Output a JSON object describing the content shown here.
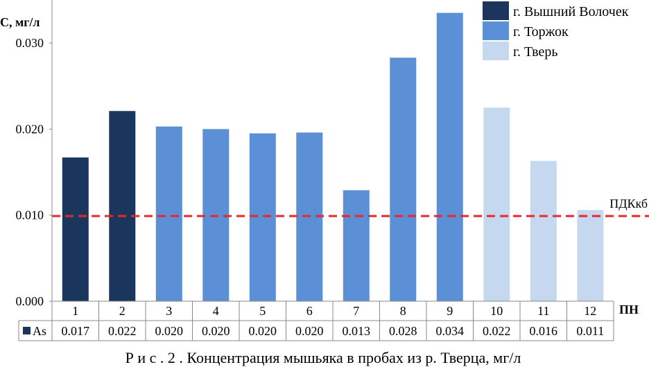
{
  "chart_data": {
    "type": "bar",
    "ylabel": "С, мг/л",
    "xlabel": "ПН",
    "ylim": [
      0,
      0.035
    ],
    "yticks": [
      "0.000",
      "0.010",
      "0.020",
      "0.030"
    ],
    "ytick_values": [
      0,
      0.01,
      0.02,
      0.03
    ],
    "categories": [
      "1",
      "2",
      "3",
      "4",
      "5",
      "6",
      "7",
      "8",
      "9",
      "10",
      "11",
      "12"
    ],
    "values": [
      0.0167,
      0.0221,
      0.0203,
      0.02,
      0.0195,
      0.0196,
      0.0129,
      0.0283,
      0.0335,
      0.0225,
      0.0163,
      0.0106
    ],
    "groups": [
      "г. Вышний Волочек",
      "г. Вышний Волочек",
      "г. Торжок",
      "г. Торжок",
      "г. Торжок",
      "г. Торжок",
      "г. Торжок",
      "г. Торжок",
      "г. Торжок",
      "г. Тверь",
      "г. Тверь",
      "г. Тверь"
    ],
    "legend": [
      {
        "name": "г. Вышний Волочек",
        "color": "#1b365d"
      },
      {
        "name": "г. Торжок",
        "color": "#5b8fd6"
      },
      {
        "name": "г. Тверь",
        "color": "#c5d8f0"
      }
    ],
    "legend_position": "top-right",
    "threshold": {
      "label": "ПДКкб",
      "value": 0.0099,
      "color": "#e8262b",
      "style": "dashed"
    },
    "data_table": {
      "row_label": "As",
      "row_color": "#1b365d",
      "cells": [
        "0.017",
        "0.022",
        "0.020",
        "0.020",
        "0.020",
        "0.020",
        "0.013",
        "0.028",
        "0.034",
        "0.022",
        "0.016",
        "0.011"
      ]
    },
    "grid": false,
    "caption": "Р и с .  2 .  Концентрация мышьяка в пробах из р. Тверца, мг/л"
  }
}
